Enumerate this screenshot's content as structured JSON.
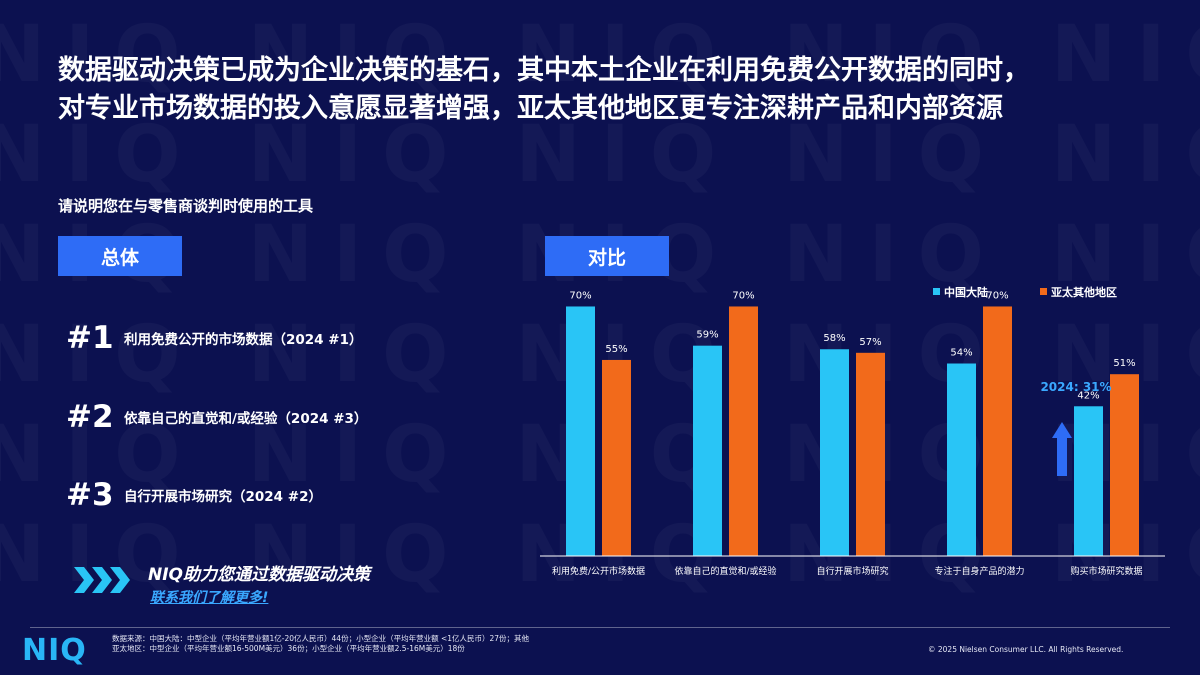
{
  "title_line1": "数据驱动决策已成为企业决策的基石，其中本土企业在利用免费公开数据的同时，",
  "title_line2": "对专业市场数据的投入意愿显著增强，亚太其他地区更专注深耕产品和内部资源",
  "question": "请说明您在与零售商谈判时使用的工具",
  "watermark_text": "NIQ",
  "left_panel": {
    "label": "总体",
    "ranks": [
      {
        "num": "#1",
        "text": "利用免费公开的市场数据（2024 #1）"
      },
      {
        "num": "#2",
        "text": "依靠自己的直觉和/或经验（2024 #3）"
      },
      {
        "num": "#3",
        "text": "自行开展市场研究（2024 #2）"
      }
    ]
  },
  "right_panel": {
    "label": "对比"
  },
  "cta": {
    "main": "NIQ助力您通过数据驱动决策",
    "link": "联系我们了解更多!"
  },
  "footer": {
    "logo": "NIQ",
    "footnote": "数据来源：中国大陆：中型企业（平均年营业额1亿-20亿人民币）44份；小型企业（平均年营业额 <1亿人民币）27份；其他亚太地区：中型企业（平均年营业额16-500M美元）36份；小型企业（平均年营业额2.5-16M美元）18份",
    "copyright": "© 2025 Nielsen Consumer LLC. All Rights Reserved."
  },
  "colors": {
    "china": "#29c5f6",
    "apac": "#f26a1b",
    "accent": "#2e6cf6",
    "up_arrow": "#2e6cf6"
  },
  "chart_data": {
    "type": "bar",
    "categories": [
      "利用免费/公开市场数据",
      "依靠自己的直觉和/或经验",
      "自行开展市场研究",
      "专注于自身产品的潜力",
      "购买市场研究数据"
    ],
    "series": [
      {
        "name": "中国大陆",
        "values": [
          70,
          59,
          58,
          54,
          42
        ]
      },
      {
        "name": "亚太其他地区",
        "values": [
          55,
          70,
          57,
          70,
          51
        ]
      }
    ],
    "value_labels": [
      [
        "70%",
        "59%",
        "58%",
        "54%",
        "42%"
      ],
      [
        "55%",
        "70%",
        "57%",
        "70%",
        "51%"
      ]
    ],
    "ylim": [
      0,
      85
    ],
    "legend": "top-right",
    "annotation": {
      "category_index": 4,
      "text": "2024: 31%"
    }
  }
}
